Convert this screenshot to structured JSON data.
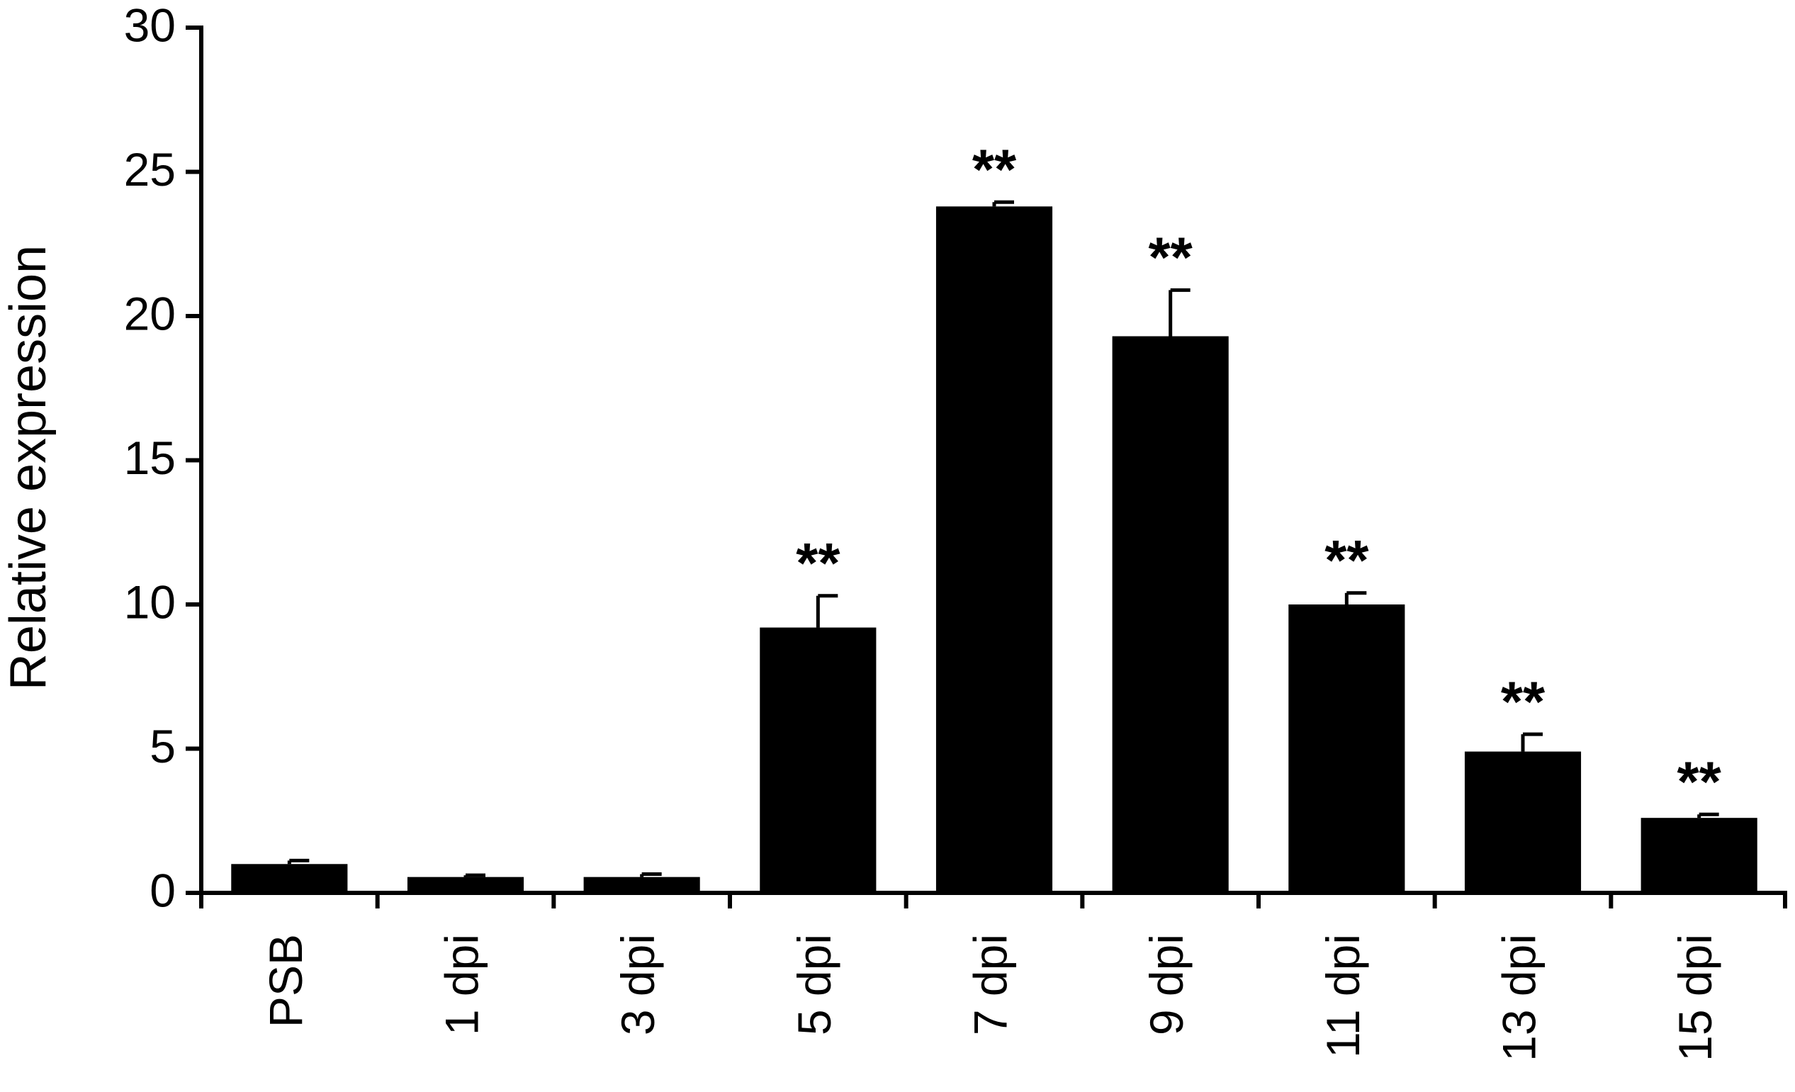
{
  "chart_data": {
    "type": "bar",
    "y_label": "Relative expression",
    "categories": [
      "PSB",
      "1 dpi",
      "3 dpi",
      "5 dpi",
      "7 dpi",
      "9 dpi",
      "11 dpi",
      "13 dpi",
      "15 dpi"
    ],
    "values": [
      1.0,
      0.55,
      0.55,
      9.2,
      23.8,
      19.3,
      10.0,
      4.9,
      2.6
    ],
    "errors": [
      0.12,
      0.06,
      0.1,
      1.1,
      0.15,
      1.6,
      0.4,
      0.6,
      0.12
    ],
    "significance": [
      null,
      null,
      null,
      "**",
      "**",
      "**",
      "**",
      "**",
      "**"
    ],
    "color": "#000000",
    "ylim": [
      0,
      30
    ],
    "yticks": [
      0,
      5,
      10,
      15,
      20,
      25,
      30
    ],
    "grid": false
  }
}
